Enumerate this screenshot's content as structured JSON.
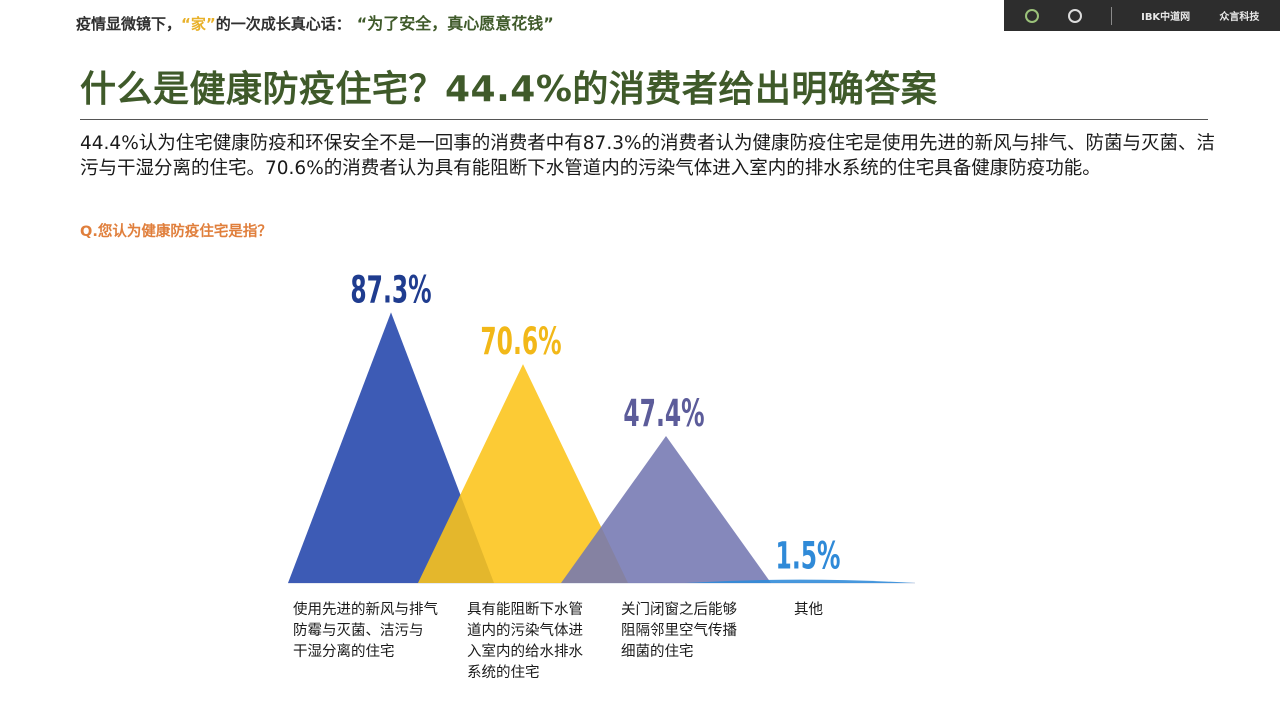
{
  "header": {
    "banner_prefix": "疫情显微镜下，",
    "banner_highlight": "“家”",
    "banner_mid": "的一次成长真心话：",
    "banner_quote": "“为了安全，真心愿意花钱”"
  },
  "logos": [
    "IBK中道网",
    "众言科技"
  ],
  "title": "什么是健康防疫住宅？44.4%的消费者给出明确答案",
  "intro": "44.4%认为住宅健康防疫和环保安全不是一回事的消费者中有87.3%的消费者认为健康防疫住宅是使用先进的新风与排气、防菌与灭菌、洁污与干湿分离的住宅。70.6%的消费者认为具有能阻断下水管道内的污染气体进入室内的排水系统的住宅具备健康防疫功能。",
  "question": "Q.您认为健康防疫住宅是指？",
  "chart_data": {
    "type": "area",
    "categories": [
      "使用先进的新风与排气防霉与灭菌、洁污与干湿分离的住宅",
      "具有能阻断下水管道内的污染气体进入室内的给水排水系统的住宅",
      "关门闭窗之后能够阻隔邻里空气传播细菌的住宅",
      "其他"
    ],
    "values": [
      87.3,
      70.6,
      47.4,
      1.5
    ],
    "value_labels": [
      "87.3%",
      "70.6%",
      "47.4%",
      "1.5%"
    ],
    "colors": [
      "#3d5bb5",
      "#fcc419",
      "#7477b2",
      "#2f8ad8"
    ],
    "label_colors": [
      "#1f3c8f",
      "#f2b818",
      "#5c5c9a",
      "#2f8ad8"
    ]
  },
  "category_lines": [
    [
      "使用先进的新风与排气",
      "防霉与灭菌、洁污与",
      "干湿分离的住宅"
    ],
    [
      "具有能阻断下水管",
      "道内的污染气体进",
      "入室内的给水排水",
      "系统的住宅"
    ],
    [
      "关门闭窗之后能够",
      "阻隔邻里空气传播",
      "细菌的住宅"
    ],
    [
      "其他"
    ]
  ]
}
